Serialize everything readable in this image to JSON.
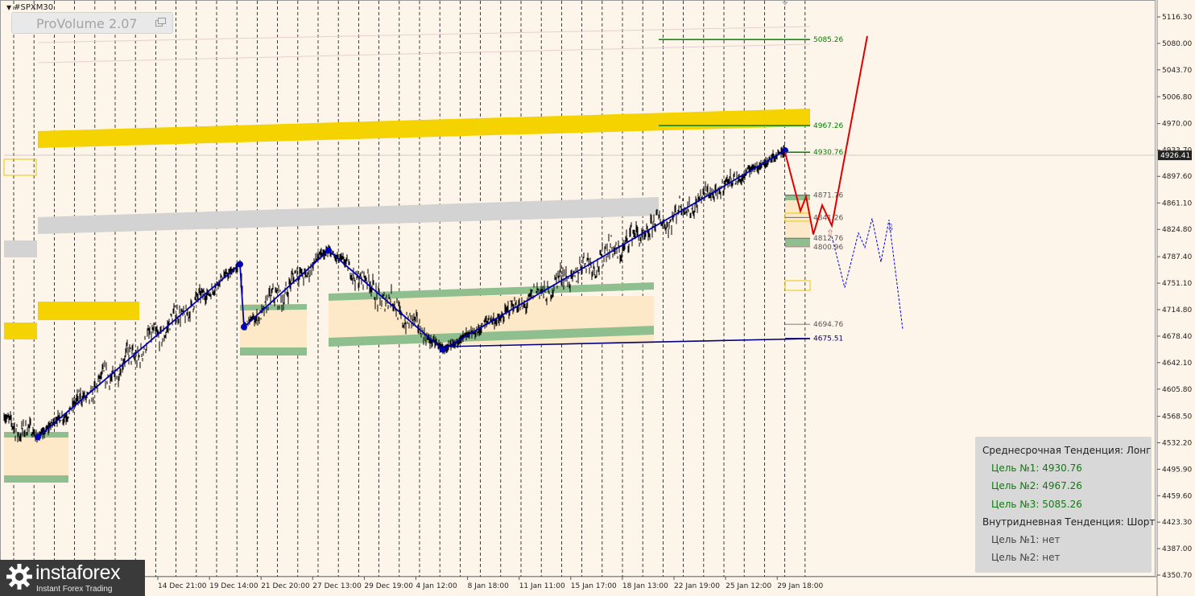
{
  "header": {
    "symbol": "#SPXM30"
  },
  "indicator": {
    "title": "ProVolume 2.07"
  },
  "chart_data": {
    "type": "candlestick",
    "symbol": "#SPXM30",
    "timeframe": "M30",
    "price_axis_ticks": [
      "5116.30",
      "5080.00",
      "5043.70",
      "5006.80",
      "4970.00",
      "4933.70",
      "4897.60",
      "4861.10",
      "4824.80",
      "4787.40",
      "4751.10",
      "4714.80",
      "4678.40",
      "4642.10",
      "4605.80",
      "4568.50",
      "4532.20",
      "4495.90",
      "4459.60",
      "4423.30",
      "4387.00",
      "4350.70"
    ],
    "current_price": "4926.41",
    "time_axis_labels": [
      "14 Dec 21:00",
      "19 Dec 14:00",
      "21 Dec 20:00",
      "27 Dec 13:00",
      "29 Dec 19:00",
      "4 Jan 12:00",
      "8 Jan 18:00",
      "11 Jan 11:00",
      "15 Jan 17:00",
      "18 Jan 13:00",
      "22 Jan 19:00",
      "25 Jan 12:00",
      "29 Jan 18:00"
    ],
    "zigzag_pivots": [
      {
        "time": "11 Dec",
        "price": 4540
      },
      {
        "time": "19 Dec 13:00",
        "price": 4777
      },
      {
        "time": "19 Dec 16:00",
        "price": 4691
      },
      {
        "time": "27 Dec 00:00",
        "price": 4796
      },
      {
        "time": "4 Jan 12:00",
        "price": 4660
      },
      {
        "time": "29 Jan 17:00",
        "price": 4933
      }
    ],
    "target_levels": [
      {
        "label": "5085.26",
        "price": 5085.26,
        "color": "#008000"
      },
      {
        "label": "4967.26",
        "price": 4967.26,
        "color": "#008000"
      },
      {
        "label": "4930.76",
        "price": 4930.76,
        "color": "#008000"
      },
      {
        "label": "4871.76",
        "price": 4871.76,
        "color": "#555555"
      },
      {
        "label": "4841.26",
        "price": 4841.26,
        "color": "#555555"
      },
      {
        "label": "4812.76",
        "price": 4812.76,
        "color": "#555555"
      },
      {
        "label": "4800.96",
        "price": 4800.96,
        "color": "#555555"
      },
      {
        "label": "4694.76",
        "price": 4694.76,
        "color": "#555555"
      },
      {
        "label": "4675.51",
        "price": 4675.51,
        "color": "#000080"
      }
    ],
    "projection_main": [
      4930,
      4850,
      4870,
      4818,
      4858,
      4830,
      5090
    ],
    "projection_alt": [
      4815,
      4745,
      4820,
      4800,
      4840,
      4780,
      4838,
      4688
    ],
    "colors": {
      "background": "#fef5ea",
      "zone_yellow": "#f5d300",
      "zone_gray": "#d3d3d3",
      "zone_green": "#8fbf8f",
      "zigzag": "#0000b4",
      "projection_red": "#e00000",
      "projection_blue": "#0000e0"
    }
  },
  "info_box": {
    "mid_trend": "Среднесрочная Тенденция: Лонг",
    "mid_targets": [
      "Цель №1: 4930.76",
      "Цель №2: 4967.26",
      "Цель №3: 5085.26"
    ],
    "intraday_trend": "Внутридневная Тенденция: Шорт",
    "intraday_targets": [
      "Цель №1: нет",
      "Цель №2: нет"
    ]
  },
  "logo": {
    "name": "instaforex",
    "tagline": "Instant Forex Trading"
  }
}
